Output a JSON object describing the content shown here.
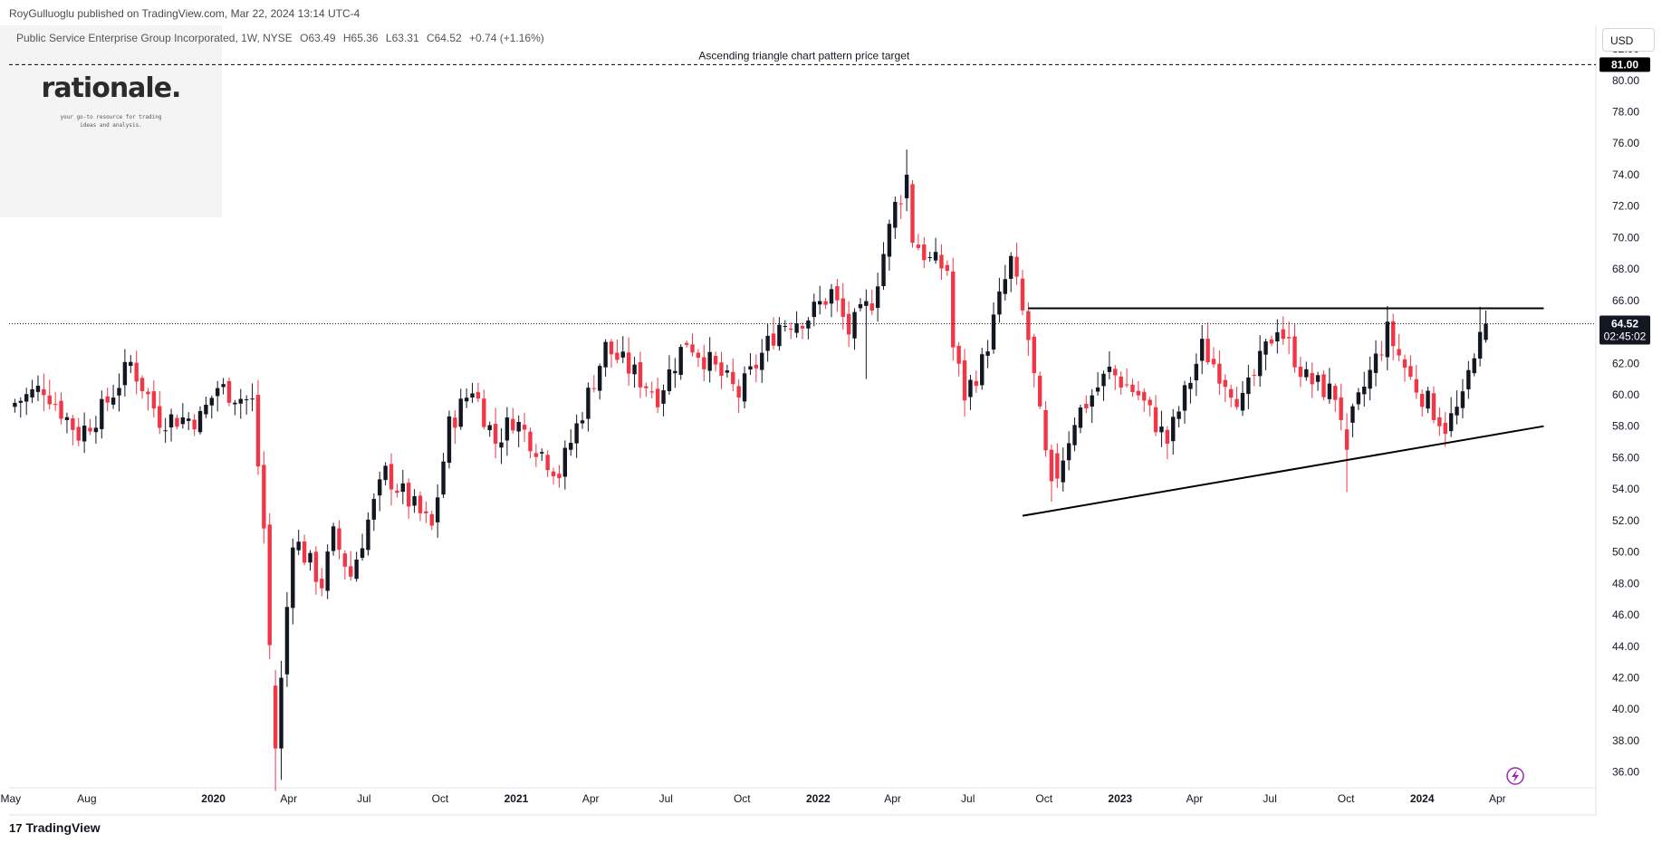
{
  "header": {
    "published_line": "RoyGulluoglu published on TradingView.com, Mar 22, 2024 13:14 UTC-4",
    "symbol_name": "Public Service Enterprise Group Incorporated, 1W, NYSE",
    "open": "O63.49",
    "high": "H65.36",
    "low": "L63.31",
    "close": "C64.52",
    "change": "+0.74 (+1.16%)"
  },
  "watermark": {
    "brand": "rationale.",
    "tagline_1": "your go-to resource for trading",
    "tagline_2": "ideas and analysis."
  },
  "price_axis": {
    "currency": "USD",
    "ticks": [
      "82.00",
      "80.00",
      "78.00",
      "76.00",
      "74.00",
      "72.00",
      "70.00",
      "68.00",
      "66.00",
      "64.00",
      "62.00",
      "60.00",
      "58.00",
      "56.00",
      "54.00",
      "52.00",
      "50.00",
      "48.00",
      "46.00",
      "44.00",
      "42.00",
      "40.00",
      "38.00",
      "36.00"
    ],
    "target_label": "81.00",
    "last_price_label": "64.52",
    "countdown_label": "02:45:02"
  },
  "time_axis": {
    "labels": [
      "May",
      "Aug",
      "2020",
      "Apr",
      "Jul",
      "Oct",
      "2021",
      "Apr",
      "Jul",
      "Oct",
      "2022",
      "Apr",
      "Jul",
      "Oct",
      "2023",
      "Apr",
      "Jul",
      "Oct",
      "2024",
      "Apr"
    ],
    "bold_labels": [
      "2020",
      "2021",
      "2022",
      "2023",
      "2024"
    ]
  },
  "annotations": {
    "target_text": "Ascending triangle chart pattern price target"
  },
  "footer": {
    "brand": "TradingView",
    "icon": "tradingview-logo-icon"
  },
  "colors": {
    "up": "#131722",
    "down": "#f23645",
    "line": "#000000",
    "dotted": "#131722"
  },
  "chart_data": {
    "type": "candlestick",
    "timeframe": "1W",
    "y_range": [
      35,
      83.5
    ],
    "x_range": [
      "2019-04-29",
      "2024-07-29"
    ],
    "anchors": [
      {
        "date": "2019-05-06",
        "close": 59.5
      },
      {
        "date": "2019-06-10",
        "close": 60.5
      },
      {
        "date": "2019-07-22",
        "close": 57.5
      },
      {
        "date": "2019-08-19",
        "close": 59.0
      },
      {
        "date": "2019-09-23",
        "close": 62.0
      },
      {
        "date": "2019-10-28",
        "close": 58.5
      },
      {
        "date": "2019-12-16",
        "close": 58.5
      },
      {
        "date": "2020-01-06",
        "close": 60.5
      },
      {
        "date": "2020-01-27",
        "close": 60.0
      },
      {
        "date": "2020-02-17",
        "close": 59.5
      },
      {
        "date": "2020-03-02",
        "close": 51.5
      },
      {
        "date": "2020-03-09",
        "close": 44.0
      },
      {
        "date": "2020-03-16",
        "close": 37.5
      },
      {
        "date": "2020-03-23",
        "close": 42.0
      },
      {
        "date": "2020-04-06",
        "close": 51.0
      },
      {
        "date": "2020-05-11",
        "close": 48.0
      },
      {
        "date": "2020-05-25",
        "close": 51.0
      },
      {
        "date": "2020-06-15",
        "close": 48.5
      },
      {
        "date": "2020-07-06",
        "close": 52.0
      },
      {
        "date": "2020-07-27",
        "close": 55.0
      },
      {
        "date": "2020-09-21",
        "close": 51.5
      },
      {
        "date": "2020-10-12",
        "close": 58.0
      },
      {
        "date": "2020-11-09",
        "close": 60.5
      },
      {
        "date": "2020-12-07",
        "close": 57.0
      },
      {
        "date": "2020-12-28",
        "close": 58.5
      },
      {
        "date": "2021-02-22",
        "close": 55.0
      },
      {
        "date": "2021-03-22",
        "close": 59.0
      },
      {
        "date": "2021-04-19",
        "close": 63.0
      },
      {
        "date": "2021-06-21",
        "close": 60.0
      },
      {
        "date": "2021-07-26",
        "close": 63.5
      },
      {
        "date": "2021-08-23",
        "close": 62.0
      },
      {
        "date": "2021-09-27",
        "close": 60.0
      },
      {
        "date": "2021-11-15",
        "close": 64.5
      },
      {
        "date": "2021-12-20",
        "close": 65.0
      },
      {
        "date": "2022-01-17",
        "close": 66.5
      },
      {
        "date": "2022-02-07",
        "close": 64.0
      },
      {
        "date": "2022-03-07",
        "close": 66.0
      },
      {
        "date": "2022-04-04",
        "close": 72.0
      },
      {
        "date": "2022-04-18",
        "close": 73.5
      },
      {
        "date": "2022-04-25",
        "close": 70.0
      },
      {
        "date": "2022-05-16",
        "close": 68.5
      },
      {
        "date": "2022-06-06",
        "close": 68.0
      },
      {
        "date": "2022-06-13",
        "close": 63.0
      },
      {
        "date": "2022-06-27",
        "close": 60.0
      },
      {
        "date": "2022-07-18",
        "close": 62.0
      },
      {
        "date": "2022-08-08",
        "close": 66.0
      },
      {
        "date": "2022-08-22",
        "close": 68.5
      },
      {
        "date": "2022-09-12",
        "close": 63.5
      },
      {
        "date": "2022-10-03",
        "close": 56.0
      },
      {
        "date": "2022-10-17",
        "close": 55.0
      },
      {
        "date": "2022-11-07",
        "close": 58.5
      },
      {
        "date": "2022-12-19",
        "close": 61.5
      },
      {
        "date": "2023-01-23",
        "close": 60.0
      },
      {
        "date": "2023-02-27",
        "close": 57.0
      },
      {
        "date": "2023-04-10",
        "close": 63.0
      },
      {
        "date": "2023-05-29",
        "close": 59.5
      },
      {
        "date": "2023-07-10",
        "close": 64.5
      },
      {
        "date": "2023-08-14",
        "close": 61.0
      },
      {
        "date": "2023-09-18",
        "close": 60.0
      },
      {
        "date": "2023-10-02",
        "close": 57.5
      },
      {
        "date": "2023-10-23",
        "close": 60.5
      },
      {
        "date": "2023-11-20",
        "close": 64.0
      },
      {
        "date": "2023-12-18",
        "close": 61.0
      },
      {
        "date": "2024-01-29",
        "close": 58.0
      },
      {
        "date": "2024-02-19",
        "close": 59.5
      },
      {
        "date": "2024-03-04",
        "close": 63.0
      },
      {
        "date": "2024-03-11",
        "close": 64.5
      },
      {
        "date": "2024-03-18",
        "close": 64.52
      }
    ],
    "lines": [
      {
        "name": "price-target-line",
        "style": "dashed",
        "from": [
          "2019-04-29",
          81.0
        ],
        "to": [
          "2024-07-29",
          81.0
        ]
      },
      {
        "name": "resistance-line",
        "style": "solid",
        "from": [
          "2022-09-12",
          65.5
        ],
        "to": [
          "2024-05-27",
          65.5
        ]
      },
      {
        "name": "support-line",
        "style": "solid",
        "from": [
          "2022-09-05",
          52.3
        ],
        "to": [
          "2024-05-27",
          58.0
        ]
      },
      {
        "name": "last-price-line",
        "style": "dotted",
        "from": [
          "2019-04-29",
          64.52
        ],
        "to": [
          "2024-07-29",
          64.52
        ]
      }
    ]
  }
}
